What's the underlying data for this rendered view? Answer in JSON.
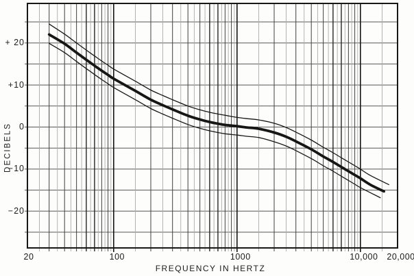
{
  "chart_data": {
    "type": "line",
    "title": "",
    "xlabel": "FREQUENCY IN HERTZ",
    "ylabel": "DECIBELS",
    "x_scale": "log",
    "x_range": [
      20,
      20000
    ],
    "y_range_visible": [
      -29,
      29
    ],
    "y_gridline_step_db": 5,
    "grid": "on",
    "legend": "none",
    "x_ticks": [
      {
        "f": 20,
        "label": "20"
      },
      {
        "f": 100,
        "label": "100"
      },
      {
        "f": 1000,
        "label": "1000"
      },
      {
        "f": 10000,
        "label": "10,000"
      },
      {
        "f": 20000,
        "label": "20,000"
      }
    ],
    "y_ticks": [
      {
        "db": 20,
        "label": "+ 20"
      },
      {
        "db": 10,
        "label": "+10"
      },
      {
        "db": 0,
        "label": "0"
      },
      {
        "db": -10,
        "label": "−10"
      },
      {
        "db": -20,
        "label": "−20"
      }
    ],
    "series": [
      {
        "name": "main-response-curve",
        "style": "thick",
        "points": [
          [
            30,
            22.0
          ],
          [
            40,
            19.8
          ],
          [
            50,
            17.7
          ],
          [
            60,
            16.0
          ],
          [
            70,
            14.6
          ],
          [
            80,
            13.4
          ],
          [
            90,
            12.4
          ],
          [
            100,
            11.5
          ],
          [
            150,
            8.6
          ],
          [
            200,
            6.5
          ],
          [
            250,
            5.2
          ],
          [
            300,
            4.2
          ],
          [
            400,
            2.7
          ],
          [
            500,
            1.8
          ],
          [
            600,
            1.2
          ],
          [
            700,
            0.8
          ],
          [
            800,
            0.5
          ],
          [
            1000,
            0.2
          ],
          [
            1200,
            -0.1
          ],
          [
            1500,
            -0.4
          ],
          [
            2000,
            -1.3
          ],
          [
            2500,
            -2.3
          ],
          [
            3000,
            -3.4
          ],
          [
            4000,
            -5.3
          ],
          [
            5000,
            -7.0
          ],
          [
            6000,
            -8.3
          ],
          [
            7000,
            -9.5
          ],
          [
            8000,
            -10.5
          ],
          [
            9000,
            -11.4
          ],
          [
            10000,
            -12.2
          ],
          [
            12000,
            -13.7
          ],
          [
            15500,
            -15.3
          ]
        ]
      },
      {
        "name": "upper-tolerance-limit",
        "style": "thin",
        "points": [
          [
            30,
            24.5
          ],
          [
            40,
            22.1
          ],
          [
            50,
            20.0
          ],
          [
            60,
            18.3
          ],
          [
            70,
            16.9
          ],
          [
            80,
            15.7
          ],
          [
            90,
            14.7
          ],
          [
            100,
            13.8
          ],
          [
            150,
            10.9
          ],
          [
            200,
            8.8
          ],
          [
            250,
            7.5
          ],
          [
            300,
            6.5
          ],
          [
            400,
            5.0
          ],
          [
            500,
            4.1
          ],
          [
            600,
            3.5
          ],
          [
            700,
            3.1
          ],
          [
            800,
            2.8
          ],
          [
            1000,
            2.3
          ],
          [
            1200,
            2.0
          ],
          [
            1500,
            1.7
          ],
          [
            2000,
            0.9
          ],
          [
            2500,
            -0.1
          ],
          [
            3000,
            -1.2
          ],
          [
            4000,
            -3.1
          ],
          [
            5000,
            -4.8
          ],
          [
            6000,
            -6.1
          ],
          [
            7000,
            -7.3
          ],
          [
            8000,
            -8.3
          ],
          [
            9000,
            -9.2
          ],
          [
            10000,
            -10.0
          ],
          [
            12000,
            -11.5
          ],
          [
            17000,
            -13.7
          ]
        ]
      },
      {
        "name": "lower-tolerance-limit",
        "style": "thin",
        "points": [
          [
            30,
            19.9
          ],
          [
            40,
            17.7
          ],
          [
            50,
            15.6
          ],
          [
            60,
            13.9
          ],
          [
            70,
            12.5
          ],
          [
            80,
            11.3
          ],
          [
            90,
            10.3
          ],
          [
            100,
            9.4
          ],
          [
            150,
            6.5
          ],
          [
            200,
            4.4
          ],
          [
            250,
            3.1
          ],
          [
            300,
            2.1
          ],
          [
            400,
            0.6
          ],
          [
            500,
            -0.3
          ],
          [
            600,
            -0.9
          ],
          [
            700,
            -1.3
          ],
          [
            800,
            -1.6
          ],
          [
            1000,
            -1.9
          ],
          [
            1200,
            -2.2
          ],
          [
            1500,
            -2.5
          ],
          [
            2000,
            -3.5
          ],
          [
            2500,
            -4.5
          ],
          [
            3000,
            -5.6
          ],
          [
            4000,
            -7.5
          ],
          [
            5000,
            -9.2
          ],
          [
            6000,
            -10.5
          ],
          [
            7000,
            -11.7
          ],
          [
            8000,
            -12.7
          ],
          [
            9000,
            -13.6
          ],
          [
            10000,
            -14.4
          ],
          [
            14500,
            -16.8
          ]
        ]
      }
    ],
    "colors": {
      "curve": "#161616",
      "grid_minor": "#ababab",
      "grid_major": "#3f3f3f",
      "grid_major_dark": "#242424",
      "grid_decade": "#141414",
      "grid_horizontal": "#565656",
      "frame": "#171717",
      "background": "#fdfdfc",
      "text": "#1b1b1b"
    }
  }
}
